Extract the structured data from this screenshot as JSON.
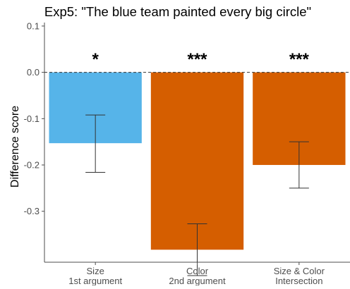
{
  "chart_data": {
    "type": "bar",
    "title": "Exp5: \"The blue team painted every big circle\"",
    "ylabel": "Difference score",
    "xlabel": "",
    "categories": [
      [
        "Size",
        "1st argument"
      ],
      [
        "Color",
        "2nd argument"
      ],
      [
        "Size & Color",
        "Intersection"
      ]
    ],
    "values": [
      -0.153,
      -0.383,
      -0.2
    ],
    "error_bars": [
      {
        "low": -0.216,
        "high": -0.092
      },
      {
        "low": -0.439,
        "high": -0.327
      },
      {
        "low": -0.25,
        "high": -0.15
      }
    ],
    "significance": [
      "*",
      "***",
      "***"
    ],
    "bar_colors": [
      "#56B4E9",
      "#D55E00",
      "#D55E00"
    ],
    "ylim": [
      -0.41,
      0.1075
    ],
    "y_ticks": [
      0.1,
      0.0,
      -0.1,
      -0.2,
      -0.3
    ],
    "y_tick_labels": [
      "0.1",
      "0.0",
      "-0.1",
      "-0.2",
      "-0.3"
    ],
    "reference_line": {
      "y": 0.0,
      "style": "dashed"
    },
    "grid": false,
    "legend": "none"
  }
}
